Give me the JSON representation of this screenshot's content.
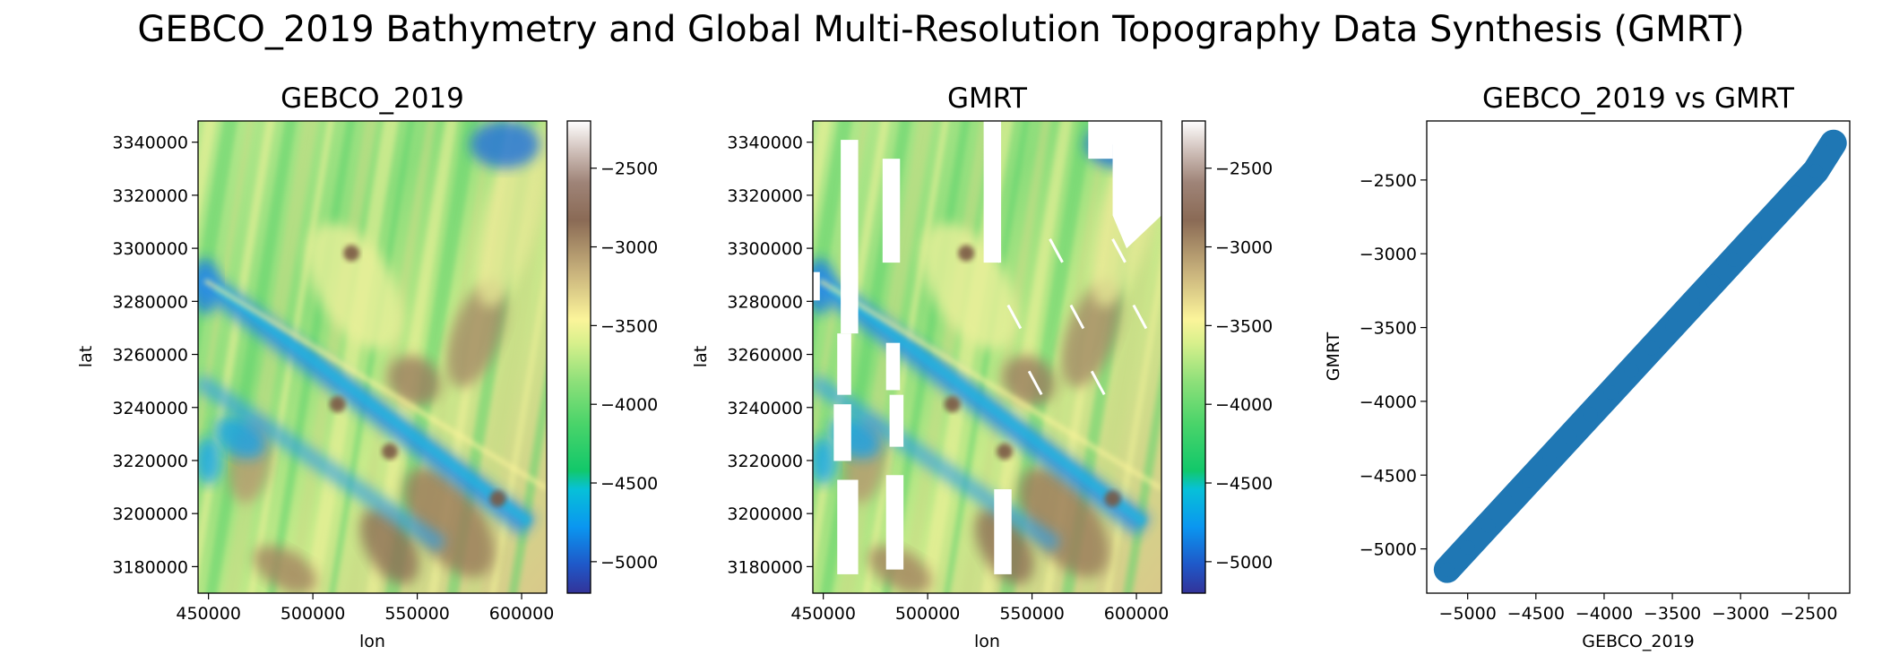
{
  "figure": {
    "suptitle": "GEBCO_2019 Bathymetry and Global Multi-Resolution Topography Data Synthesis (GMRT)"
  },
  "colors": {
    "terrain_low": "#313695",
    "scatter": "#1f77b4"
  },
  "chart_data": [
    {
      "type": "heatmap",
      "title": "GEBCO_2019",
      "xlabel": "lon",
      "ylabel": "lat",
      "xlim": [
        445000,
        612000
      ],
      "ylim": [
        3170000,
        3348000
      ],
      "xticks": [
        450000,
        500000,
        550000,
        600000
      ],
      "yticks": [
        3180000,
        3200000,
        3220000,
        3240000,
        3260000,
        3280000,
        3300000,
        3320000,
        3340000
      ],
      "colorbar": {
        "min": -5200,
        "max": -2200,
        "ticks": [
          -2500,
          -3000,
          -3500,
          -4000,
          -4500,
          -5000
        ],
        "colormap": "terrain"
      },
      "gaps": false
    },
    {
      "type": "heatmap",
      "title": "GMRT",
      "xlabel": "lon",
      "ylabel": "lat",
      "xlim": [
        445000,
        612000
      ],
      "ylim": [
        3170000,
        3348000
      ],
      "xticks": [
        450000,
        500000,
        550000,
        600000
      ],
      "yticks": [
        3180000,
        3200000,
        3220000,
        3240000,
        3260000,
        3280000,
        3300000,
        3320000,
        3340000
      ],
      "colorbar": {
        "min": -5200,
        "max": -2200,
        "ticks": [
          -2500,
          -3000,
          -3500,
          -4000,
          -4500,
          -5000
        ],
        "colormap": "terrain"
      },
      "gaps": true
    },
    {
      "type": "scatter",
      "title": "GEBCO_2019 vs GMRT",
      "xlabel": "GEBCO_2019",
      "ylabel": "GMRT",
      "xlim": [
        -5300,
        -2200
      ],
      "ylim": [
        -5300,
        -2100
      ],
      "xticks": [
        -5000,
        -4500,
        -4000,
        -3500,
        -3000,
        -2500
      ],
      "yticks": [
        -5000,
        -4500,
        -4000,
        -3500,
        -3000,
        -2500
      ],
      "series": [
        {
          "x": [
            -5150,
            -5000,
            -4850,
            -4700,
            -4550,
            -4400,
            -4250,
            -4100,
            -3950,
            -3800,
            -3650,
            -3500,
            -3350,
            -3200,
            -3050,
            -2900,
            -2750,
            -2600,
            -2450,
            -2320
          ],
          "y": [
            -5140,
            -4990,
            -4840,
            -4690,
            -4540,
            -4390,
            -4240,
            -4090,
            -3940,
            -3790,
            -3640,
            -3490,
            -3340,
            -3190,
            -3040,
            -2890,
            -2740,
            -2590,
            -2440,
            -2250
          ]
        }
      ]
    }
  ]
}
